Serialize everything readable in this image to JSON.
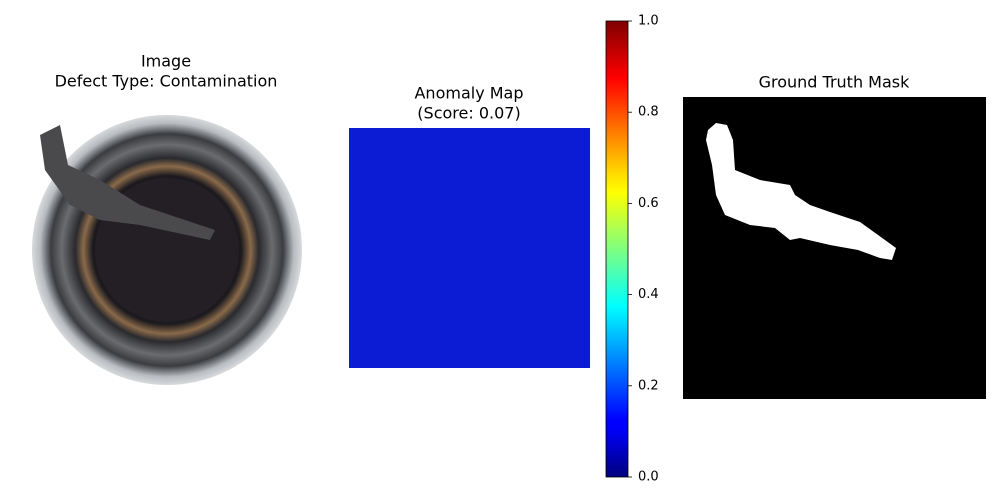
{
  "chart_data": {
    "type": "image-panels",
    "panels": [
      {
        "title": [
          "Image",
          "Defect Type: Contamination"
        ]
      },
      {
        "title": [
          "Anomaly Map",
          "(Score: 0.07)"
        ],
        "color": "#0b1cd4"
      },
      {
        "title": [
          "Ground Truth Mask"
        ]
      }
    ],
    "colorbar": {
      "colormap": "jet",
      "lim": [
        0,
        1
      ],
      "ticks": [
        {
          "value": 0,
          "label": "0.0"
        },
        0.2,
        0.4,
        0.6,
        0.8,
        {
          "value": 1,
          "label": "1.0"
        }
      ]
    }
  }
}
